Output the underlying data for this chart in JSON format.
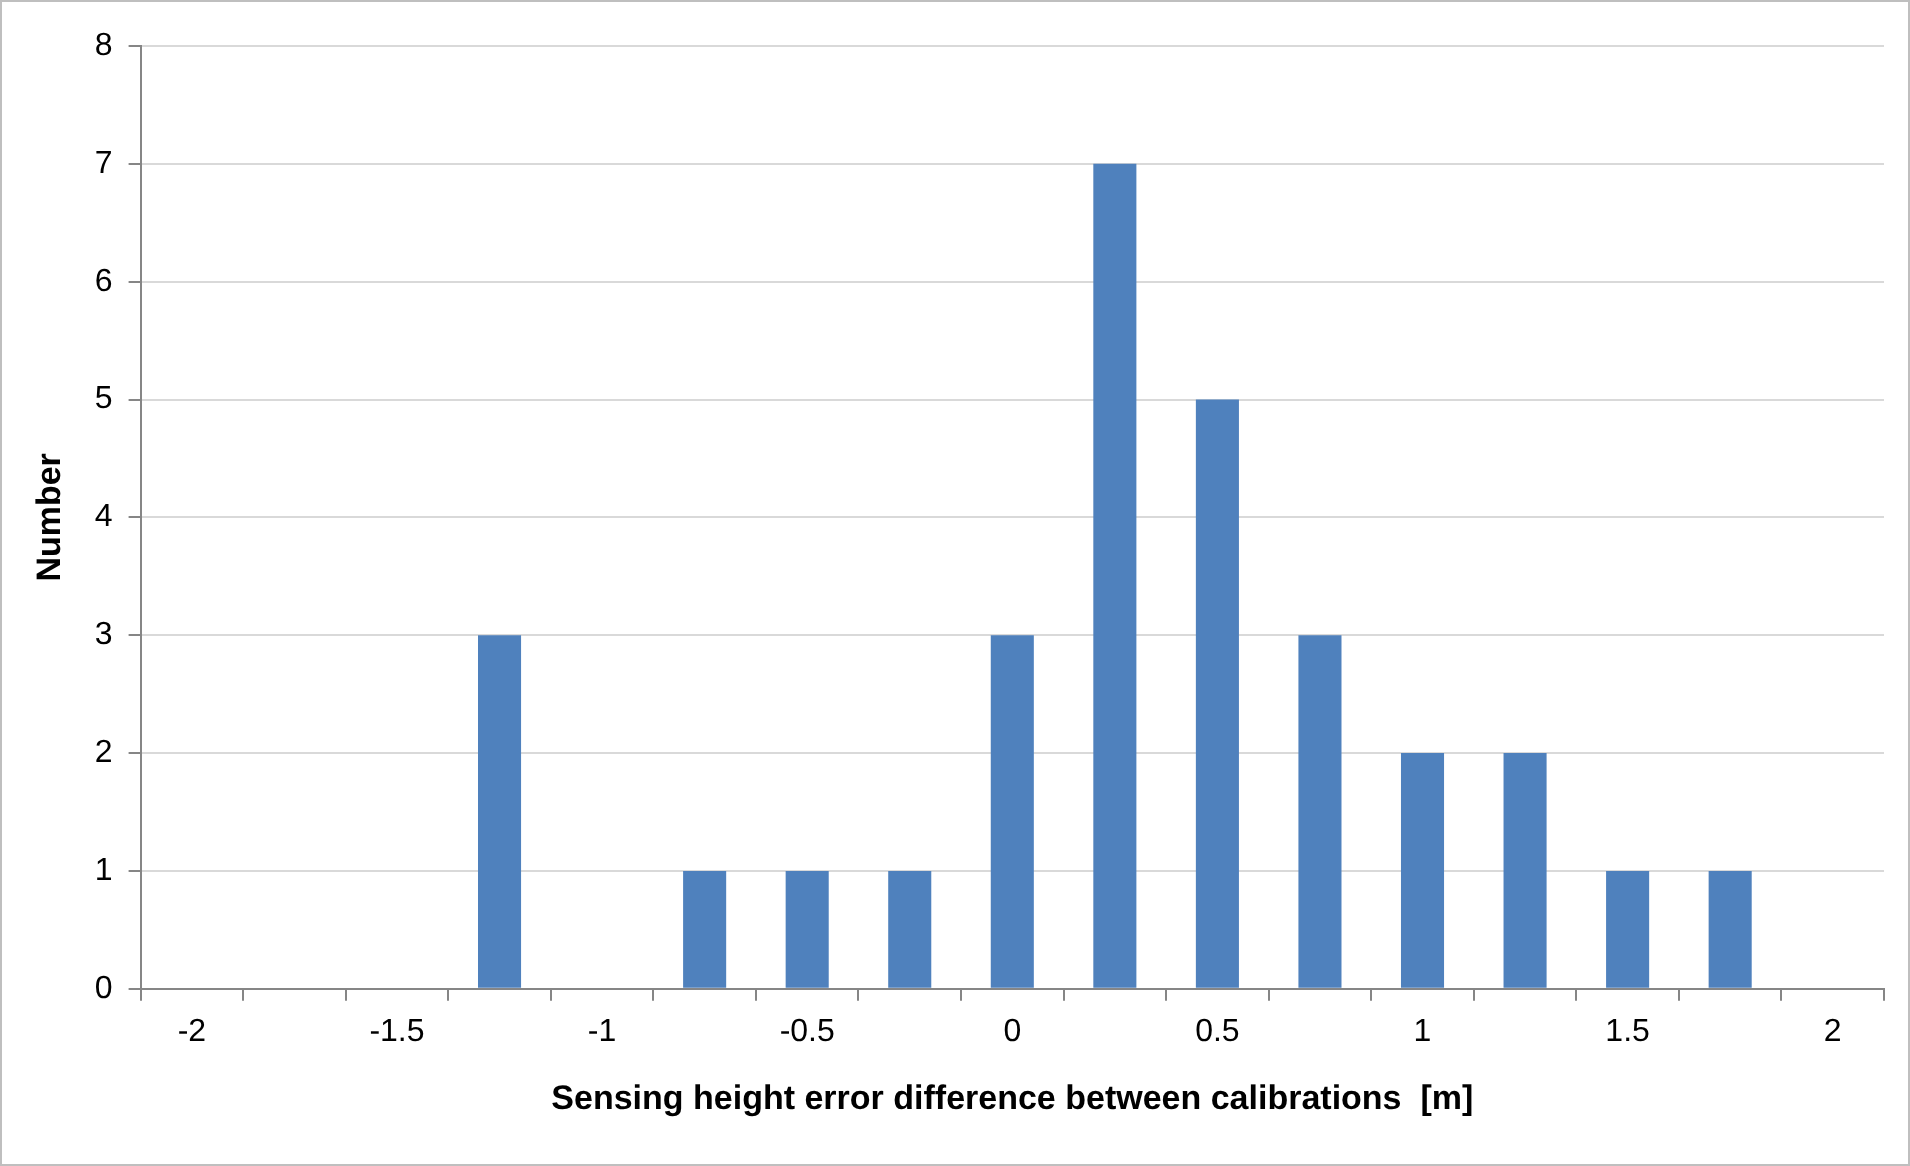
{
  "chart_data": {
    "type": "bar",
    "xlabel": "Sensing height error difference between calibrations  [m]",
    "ylabel": "Number",
    "categories": [
      "-2",
      null,
      "-1.5",
      null,
      "-1",
      null,
      "-0.5",
      null,
      "0",
      null,
      "0.5",
      null,
      "1",
      null,
      "1.5",
      null,
      "2"
    ],
    "values": [
      0,
      0,
      0,
      3,
      0,
      1,
      1,
      1,
      3,
      7,
      5,
      3,
      2,
      2,
      1,
      1,
      0
    ],
    "color": "#4f81bd",
    "ylim": [
      0,
      8
    ],
    "yticks": [
      0,
      1,
      2,
      3,
      4,
      5,
      6,
      7,
      8
    ],
    "grid": "y",
    "legend": false
  }
}
